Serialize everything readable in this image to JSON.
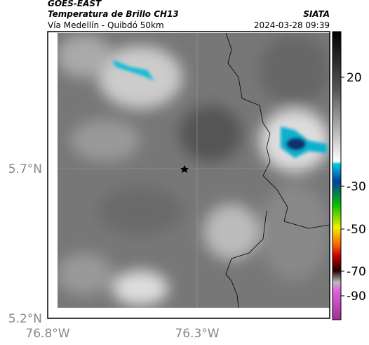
{
  "header": {
    "source": "GOES-EAST",
    "title": "Temperatura de Brillo CH13",
    "org": "SIATA",
    "subtitle": "Vía Medellín - Quibdó 50km",
    "datetime": "2024-03-28 09:39"
  },
  "map": {
    "lat_labels": [
      "5.7°N",
      "5.2°N"
    ],
    "lon_labels": [
      "76.8°W",
      "76.3°W"
    ]
  },
  "colorbar": {
    "ticks": [
      20,
      -30,
      -50,
      -70,
      -90
    ]
  }
}
